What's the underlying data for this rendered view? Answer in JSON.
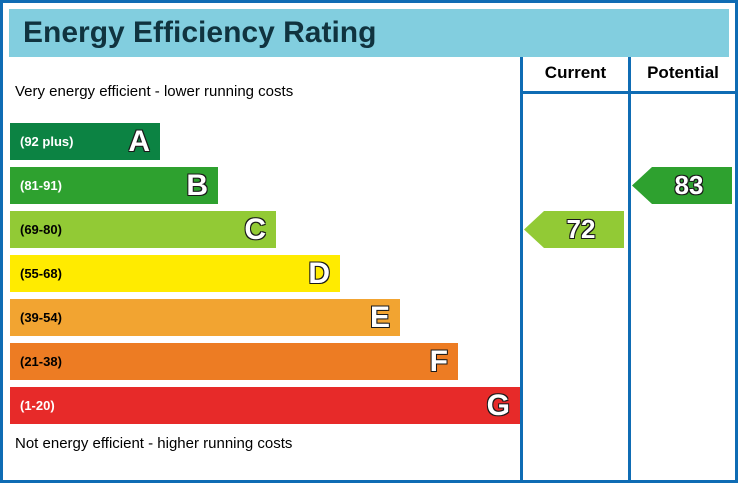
{
  "colors": {
    "border_blue": "#0f6cb4",
    "header_background": "#82cedf"
  },
  "chart_data": {
    "type": "bar",
    "title": "Energy Efficiency Rating",
    "top_note": "Very energy efficient - lower running costs",
    "bottom_note": "Not energy efficient - higher running costs",
    "columns": [
      "Current",
      "Potential"
    ],
    "bands": [
      {
        "letter": "A",
        "range_label": "(92 plus)",
        "min": 92,
        "max": 100,
        "color": "#0c8343"
      },
      {
        "letter": "B",
        "range_label": "(81-91)",
        "min": 81,
        "max": 91,
        "color": "#2ea12f"
      },
      {
        "letter": "C",
        "range_label": "(69-80)",
        "min": 69,
        "max": 80,
        "color": "#92ca35"
      },
      {
        "letter": "D",
        "range_label": "(55-68)",
        "min": 55,
        "max": 68,
        "color": "#ffeb00"
      },
      {
        "letter": "E",
        "range_label": "(39-54)",
        "min": 39,
        "max": 54,
        "color": "#f2a431"
      },
      {
        "letter": "F",
        "range_label": "(21-38)",
        "min": 21,
        "max": 38,
        "color": "#ed7c23"
      },
      {
        "letter": "G",
        "range_label": "(1-20)",
        "min": 1,
        "max": 20,
        "color": "#e72a29"
      }
    ],
    "current": {
      "value": 72,
      "band": "C",
      "color": "#92ca35"
    },
    "potential": {
      "value": 83,
      "band": "B",
      "color": "#2ea12f"
    }
  }
}
